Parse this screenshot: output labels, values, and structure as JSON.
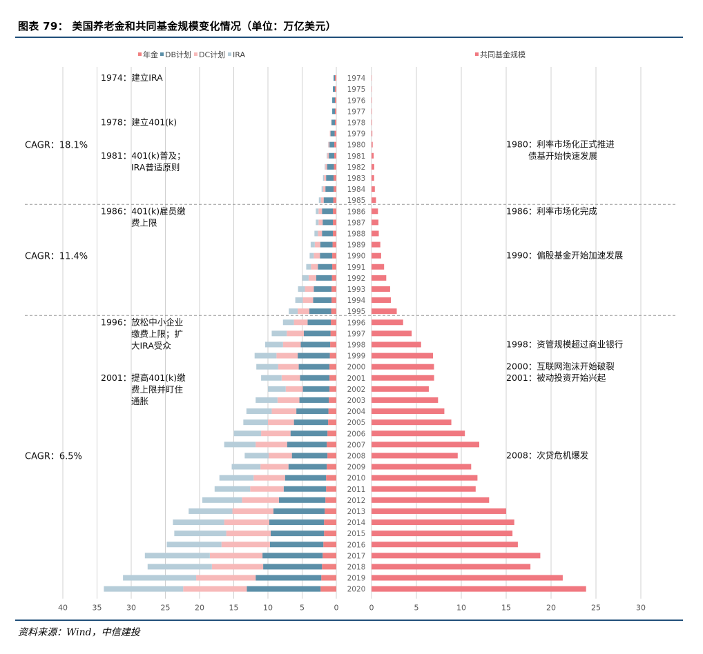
{
  "figure": {
    "title": "图表 79： 美国养老金和共同基金规模变化情况（单位：万亿美元）",
    "source": "资料来源：Wind，中信建投"
  },
  "colors": {
    "pension": "#f08080",
    "db": "#5b8fa8",
    "dc": "#f7b9b9",
    "ira": "#b6cdd9",
    "mutual_fund": "#f07880",
    "rule": "#1f4e79"
  },
  "chart_data": [
    {
      "type": "bar",
      "orientation": "horizontal",
      "stacked": true,
      "x_direction": "reversed",
      "legend_position": "top",
      "xlim": [
        0,
        40
      ],
      "xticks": [
        "40",
        "35",
        "30",
        "25",
        "20",
        "15",
        "10",
        "5",
        "0"
      ],
      "categories": [
        "1974",
        "1975",
        "1976",
        "1977",
        "1978",
        "1979",
        "1980",
        "1981",
        "1982",
        "1983",
        "1984",
        "1985",
        "1986",
        "1987",
        "1988",
        "1989",
        "1990",
        "1991",
        "1992",
        "1993",
        "1994",
        "1995",
        "1996",
        "1997",
        "1998",
        "1999",
        "2000",
        "2001",
        "2002",
        "2003",
        "2004",
        "2005",
        "2006",
        "2007",
        "2008",
        "2009",
        "2010",
        "2011",
        "2012",
        "2013",
        "2014",
        "2015",
        "2016",
        "2017",
        "2018",
        "2019",
        "2020"
      ],
      "series": [
        {
          "name": "年金",
          "color_key": "pension",
          "values": [
            0.2,
            0.2,
            0.2,
            0.2,
            0.2,
            0.25,
            0.3,
            0.3,
            0.35,
            0.4,
            0.4,
            0.45,
            0.5,
            0.5,
            0.5,
            0.55,
            0.6,
            0.6,
            0.65,
            0.7,
            0.7,
            0.75,
            0.8,
            0.85,
            0.9,
            0.95,
            1.0,
            1.0,
            1.0,
            1.1,
            1.15,
            1.2,
            1.3,
            1.4,
            1.3,
            1.4,
            1.5,
            1.5,
            1.6,
            1.7,
            1.8,
            1.8,
            1.9,
            2.0,
            2.1,
            2.2,
            2.3
          ]
        },
        {
          "name": "DB计划",
          "color_key": "db",
          "values": [
            0.2,
            0.3,
            0.4,
            0.4,
            0.5,
            0.6,
            0.7,
            0.8,
            1.0,
            1.1,
            1.2,
            1.4,
            1.6,
            1.5,
            1.6,
            1.8,
            1.8,
            2.1,
            2.3,
            2.6,
            2.7,
            3.2,
            3.4,
            3.9,
            4.3,
            4.7,
            4.5,
            4.3,
            3.9,
            4.3,
            4.7,
            5.0,
            5.4,
            5.8,
            5.2,
            5.6,
            6.0,
            6.2,
            6.8,
            7.5,
            8.0,
            7.8,
            7.8,
            8.8,
            8.6,
            9.6,
            10.8
          ]
        },
        {
          "name": "DC计划",
          "color_key": "dc",
          "values": [
            0.0,
            0.0,
            0.0,
            0.0,
            0.05,
            0.1,
            0.15,
            0.2,
            0.25,
            0.3,
            0.35,
            0.4,
            0.5,
            0.6,
            0.6,
            0.8,
            0.9,
            1.0,
            1.1,
            1.3,
            1.5,
            1.7,
            2.0,
            2.5,
            2.6,
            3.1,
            3.0,
            2.7,
            2.5,
            3.2,
            3.6,
            3.8,
            4.3,
            4.6,
            3.4,
            4.1,
            4.6,
            4.9,
            5.4,
            6.0,
            6.6,
            6.5,
            7.1,
            7.7,
            7.5,
            8.7,
            9.3
          ]
        },
        {
          "name": "IRA",
          "color_key": "ira",
          "values": [
            0.0,
            0.0,
            0.0,
            0.0,
            0.0,
            0.0,
            0.05,
            0.1,
            0.1,
            0.15,
            0.2,
            0.3,
            0.4,
            0.4,
            0.5,
            0.6,
            0.6,
            0.7,
            0.9,
            1.0,
            1.1,
            1.3,
            1.6,
            2.2,
            2.6,
            3.2,
            3.2,
            3.0,
            2.6,
            3.2,
            3.7,
            3.6,
            4.0,
            4.6,
            3.5,
            4.2,
            5.0,
            5.2,
            5.8,
            6.4,
            7.5,
            7.6,
            8.0,
            9.5,
            9.4,
            10.7,
            11.6
          ]
        }
      ]
    },
    {
      "type": "bar",
      "orientation": "horizontal",
      "legend_position": "top",
      "xlim": [
        0,
        30
      ],
      "xticks": [
        "0",
        "5",
        "10",
        "15",
        "20",
        "25",
        "30"
      ],
      "categories": [
        "1974",
        "1975",
        "1976",
        "1977",
        "1978",
        "1979",
        "1980",
        "1981",
        "1982",
        "1983",
        "1984",
        "1985",
        "1986",
        "1987",
        "1988",
        "1989",
        "1990",
        "1991",
        "1992",
        "1993",
        "1994",
        "1995",
        "1996",
        "1997",
        "1998",
        "1999",
        "2000",
        "2001",
        "2002",
        "2003",
        "2004",
        "2005",
        "2006",
        "2007",
        "2008",
        "2009",
        "2010",
        "2011",
        "2012",
        "2013",
        "2014",
        "2015",
        "2016",
        "2017",
        "2018",
        "2019",
        "2020"
      ],
      "series": [
        {
          "name": "共同基金规模",
          "color_key": "mutual_fund",
          "values": [
            0.03,
            0.04,
            0.05,
            0.05,
            0.06,
            0.09,
            0.13,
            0.24,
            0.3,
            0.29,
            0.37,
            0.5,
            0.72,
            0.77,
            0.81,
            0.98,
            1.07,
            1.4,
            1.64,
            2.07,
            2.16,
            2.81,
            3.52,
            4.47,
            5.52,
            6.85,
            6.96,
            6.97,
            6.38,
            7.41,
            8.11,
            8.89,
            10.4,
            12.0,
            9.6,
            11.1,
            11.8,
            11.6,
            13.1,
            15.0,
            15.9,
            15.7,
            16.3,
            18.8,
            17.7,
            21.3,
            23.9
          ]
        }
      ]
    }
  ],
  "annotations_left": [
    {
      "year": "1974",
      "lines": [
        "1974：建立IRA"
      ]
    },
    {
      "year": "1978",
      "lines": [
        "1978：建立401(k)"
      ]
    },
    {
      "year": "1981",
      "lines": [
        "1981：401(k)普及；",
        "IRA普适原则"
      ]
    },
    {
      "year": "1986",
      "lines": [
        "1986：401(k)雇员缴",
        "费上限"
      ]
    },
    {
      "year": "1996",
      "lines": [
        "1996：放松中小企业",
        "缴费上限；扩",
        "大IRA受众"
      ]
    },
    {
      "year": "2001",
      "lines": [
        "2001：提高401(k)缴",
        "费上限并盯住",
        "通胀"
      ]
    }
  ],
  "annotations_right": [
    {
      "year": "1980",
      "lines": [
        "1980：利率市场化正式推进",
        "债基开始快速发展"
      ]
    },
    {
      "year": "1986",
      "lines": [
        "1986：利率市场化完成"
      ]
    },
    {
      "year": "1990",
      "lines": [
        "1990：偏股基金开始加速发展"
      ]
    },
    {
      "year": "1998",
      "lines": [
        "1998：资管规模超过商业银行"
      ]
    },
    {
      "year": "2000",
      "lines": [
        "2000：互联网泡沫开始破裂"
      ]
    },
    {
      "year": "2001",
      "lines": [
        "2001：被动投资开始兴起"
      ]
    },
    {
      "year": "2008",
      "lines": [
        "2008：次贷危机爆发"
      ]
    }
  ],
  "cagr": [
    {
      "label": "CAGR：18.1%",
      "at_year": "1980"
    },
    {
      "label": "CAGR：11.4%",
      "at_year": "1990"
    },
    {
      "label": "CAGR：6.5%",
      "at_year": "2008"
    }
  ],
  "period_dividers": [
    "1985/1986",
    "1995/1996"
  ]
}
